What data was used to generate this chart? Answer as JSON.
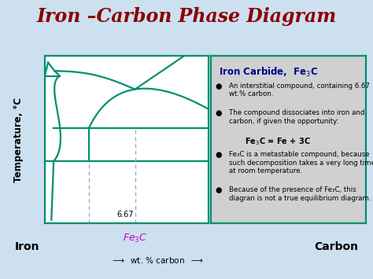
{
  "title": "Iron –Carbon Phase Diagram",
  "title_color": "#8B0000",
  "bg_color": "#cce0f0",
  "plot_bg": "#ffffff",
  "diagram_line_color": "#009070",
  "ylabel": "Temperature, °C",
  "iron_label": "Iron",
  "carbon_label": "Carbon",
  "fe3c_label": "Fe₃C",
  "x_667_label": "6.67",
  "info_title_color": "#00008B",
  "info_bg": "#d0d0d0",
  "fe3c_axis_color": "#cc00cc",
  "dashed_line_color": "#88aacc",
  "arrow_color": "#222222"
}
